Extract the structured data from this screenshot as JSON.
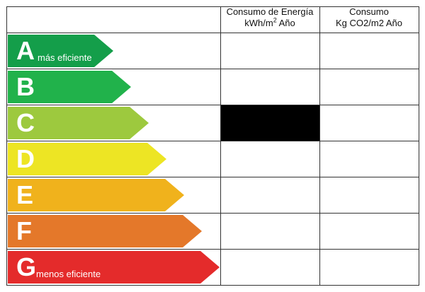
{
  "header": {
    "energy_line1": "Consumo de Energía",
    "energy_line2_prefix": "kWh/m",
    "energy_sup": "2",
    "energy_line2_suffix": " Año",
    "co2_line1": "Consumo",
    "co2_line2": "Kg CO2/m2 Año"
  },
  "ratings": [
    {
      "letter": "A",
      "sublabel": "más eficiente",
      "color": "#149e4a"
    },
    {
      "letter": "B",
      "sublabel": "",
      "color": "#21b24b"
    },
    {
      "letter": "C",
      "sublabel": "",
      "color": "#9dc93e"
    },
    {
      "letter": "D",
      "sublabel": "",
      "color": "#ede524"
    },
    {
      "letter": "E",
      "sublabel": "",
      "color": "#f0b21c"
    },
    {
      "letter": "F",
      "sublabel": "",
      "color": "#e4782a"
    },
    {
      "letter": "G",
      "sublabel": "menos eficiente",
      "color": "#e42b2b"
    }
  ],
  "energy_marker": {
    "rating": "C",
    "color": "#000000"
  }
}
